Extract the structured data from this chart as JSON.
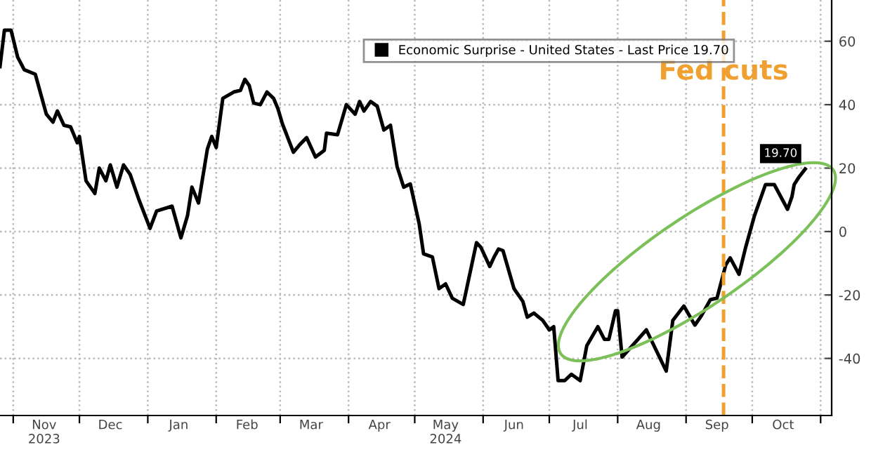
{
  "chart_data": {
    "type": "line",
    "x": [
      "2023-10-26",
      "2023-10-28",
      "2023-10-31",
      "2023-11-03",
      "2023-11-06",
      "2023-11-11",
      "2023-11-16",
      "2023-11-19",
      "2023-11-21",
      "2023-11-24",
      "2023-11-27",
      "2023-11-30",
      "2023-12-01",
      "2023-12-04",
      "2023-12-08",
      "2023-12-10",
      "2023-12-13",
      "2023-12-15",
      "2023-12-18",
      "2023-12-21",
      "2023-12-24",
      "2023-12-28",
      "2024-01-02",
      "2024-01-05",
      "2024-01-12",
      "2024-01-16",
      "2024-01-19",
      "2024-01-21",
      "2024-01-24",
      "2024-01-28",
      "2024-01-30",
      "2024-02-01",
      "2024-02-04",
      "2024-02-09",
      "2024-02-12",
      "2024-02-14",
      "2024-02-16",
      "2024-02-18",
      "2024-02-21",
      "2024-02-24",
      "2024-02-27",
      "2024-02-29",
      "2024-03-02",
      "2024-03-07",
      "2024-03-10",
      "2024-03-13",
      "2024-03-17",
      "2024-03-21",
      "2024-03-22",
      "2024-03-27",
      "2024-03-31",
      "2024-04-04",
      "2024-04-06",
      "2024-04-08",
      "2024-04-11",
      "2024-04-14",
      "2024-04-17",
      "2024-04-20",
      "2024-04-23",
      "2024-04-26",
      "2024-04-29",
      "2024-05-03",
      "2024-05-05",
      "2024-05-09",
      "2024-05-12",
      "2024-05-15",
      "2024-05-18",
      "2024-05-23",
      "2024-05-29",
      "2024-05-31",
      "2024-06-04",
      "2024-06-06",
      "2024-06-08",
      "2024-06-10",
      "2024-06-15",
      "2024-06-19",
      "2024-06-21",
      "2024-06-24",
      "2024-06-28",
      "2024-07-01",
      "2024-07-03",
      "2024-07-05",
      "2024-07-08",
      "2024-07-11",
      "2024-07-15",
      "2024-07-18",
      "2024-07-23",
      "2024-07-26",
      "2024-07-28",
      "2024-07-31",
      "2024-08-01",
      "2024-08-03",
      "2024-08-14",
      "2024-08-23",
      "2024-08-26",
      "2024-08-31",
      "2024-09-05",
      "2024-09-08",
      "2024-09-12",
      "2024-09-15",
      "2024-09-19",
      "2024-09-21",
      "2024-09-25",
      "2024-09-28",
      "2024-10-02",
      "2024-10-07",
      "2024-10-11",
      "2024-10-17",
      "2024-10-19",
      "2024-10-20",
      "2024-10-22",
      "2024-10-25"
    ],
    "series": [
      {
        "name": "Economic Surprise - United States - Last Price 19.70",
        "color": "#000000",
        "values": [
          52,
          63.5,
          63.5,
          55,
          51,
          49.6,
          37,
          34.5,
          38,
          33.5,
          33,
          28,
          30,
          16,
          12,
          20,
          16,
          21,
          14,
          21,
          18,
          10,
          1,
          6.5,
          8,
          -2,
          5,
          14,
          9,
          26,
          30,
          26.5,
          42,
          44,
          44.5,
          48,
          46,
          40.5,
          40,
          44,
          42,
          38.7,
          34,
          25,
          27.5,
          29.6,
          23.5,
          25.6,
          31,
          30.5,
          40,
          37,
          41,
          38,
          41,
          39.5,
          32,
          33.5,
          20.5,
          14,
          15,
          2.5,
          -7,
          -8,
          -18,
          -16.5,
          -21,
          -23,
          -3.5,
          -5,
          -11,
          -8,
          -5.5,
          -6,
          -18,
          -22,
          -27,
          -25.7,
          -28,
          -31,
          -30,
          -47,
          -47,
          -45,
          -47,
          -36,
          -30,
          -34,
          -34,
          -25,
          -25,
          -39.6,
          -31,
          -44,
          -28,
          -23.5,
          -29.5,
          -26.5,
          -21.5,
          -21,
          -10.5,
          -8.3,
          -13.5,
          -5,
          5,
          14.8,
          14.8,
          7,
          11,
          14.8,
          17,
          19.7
        ]
      }
    ],
    "xlim": [
      "2023-10-26",
      "2024-11-06"
    ],
    "xticks": [
      {
        "value": "2023-11-01",
        "label": null
      },
      {
        "value": "2023-11-15",
        "label": "Nov\n2023"
      },
      {
        "value": "2023-12-01",
        "label": null
      },
      {
        "value": "2023-12-15",
        "label": "Dec"
      },
      {
        "value": "2024-01-01",
        "label": null
      },
      {
        "value": "2024-01-15",
        "label": "Jan"
      },
      {
        "value": "2024-02-01",
        "label": null
      },
      {
        "value": "2024-02-15",
        "label": "Feb"
      },
      {
        "value": "2024-03-01",
        "label": null
      },
      {
        "value": "2024-03-15",
        "label": "Mar"
      },
      {
        "value": "2024-04-01",
        "label": null
      },
      {
        "value": "2024-04-15",
        "label": "Apr"
      },
      {
        "value": "2024-05-01",
        "label": null
      },
      {
        "value": "2024-05-15",
        "label": "May\n2024"
      },
      {
        "value": "2024-06-01",
        "label": null
      },
      {
        "value": "2024-06-15",
        "label": "Jun"
      },
      {
        "value": "2024-07-01",
        "label": null
      },
      {
        "value": "2024-07-15",
        "label": "Jul"
      },
      {
        "value": "2024-08-01",
        "label": null
      },
      {
        "value": "2024-08-15",
        "label": "Aug"
      },
      {
        "value": "2024-09-01",
        "label": null
      },
      {
        "value": "2024-09-15",
        "label": "Sep"
      },
      {
        "value": "2024-10-01",
        "label": null
      },
      {
        "value": "2024-10-15",
        "label": "Oct"
      },
      {
        "value": "2024-11-01",
        "label": null
      }
    ],
    "ylim": [
      -58,
      73
    ],
    "yticks": [
      -40,
      -20,
      0,
      20,
      40,
      60
    ],
    "grid": true,
    "legend": "top",
    "line_style": "solid",
    "ref_lines": [
      {
        "axis": "x",
        "value": "2024-09-18",
        "label": "Fed cuts",
        "color": "#f0a030",
        "line_style": "dashed"
      }
    ],
    "annotations": [
      {
        "text": "19.70",
        "x": "2024-10-25",
        "y": 19.7
      }
    ]
  }
}
